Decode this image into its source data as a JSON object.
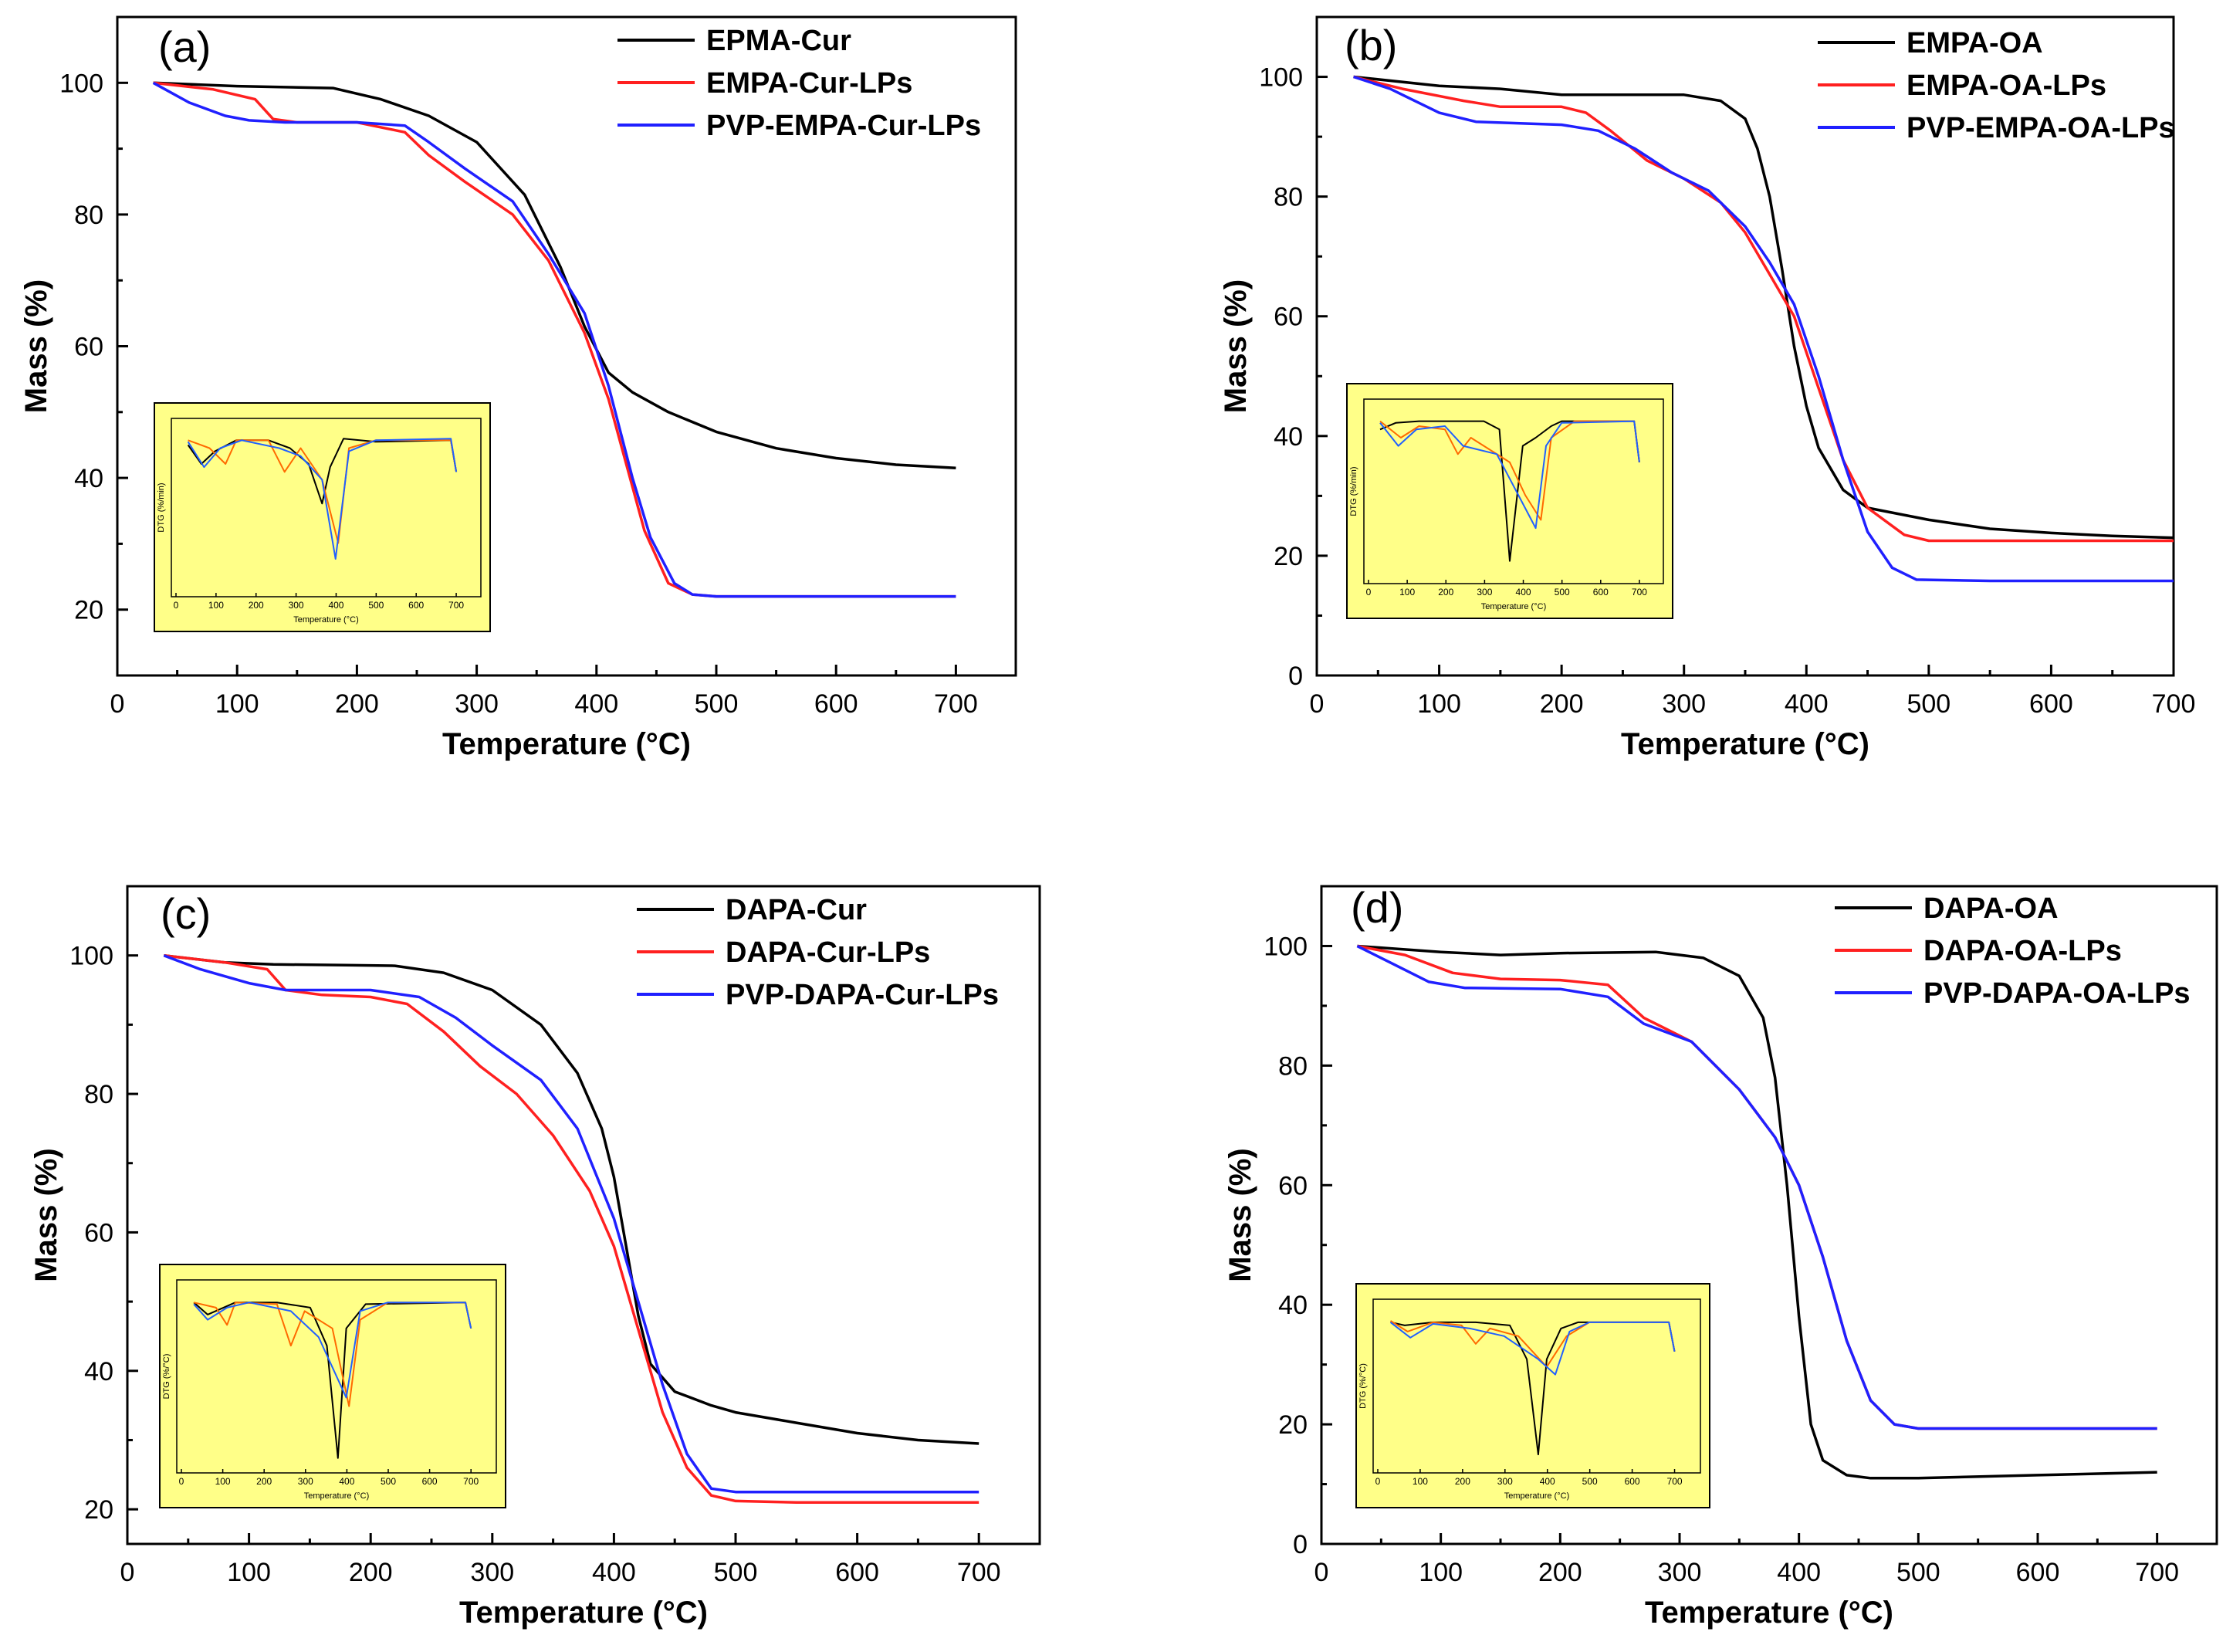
{
  "chart_data": [
    {
      "type": "line",
      "panel": "(a)",
      "xlabel": "Temperature (°C)",
      "ylabel": "Mass (%)",
      "xlim": [
        0,
        750
      ],
      "ylim": [
        10,
        110
      ],
      "xticks": [
        "0",
        "100",
        "200",
        "300",
        "400",
        "500",
        "600",
        "700"
      ],
      "yticks": [
        "20",
        "40",
        "60",
        "80",
        "100"
      ],
      "legend_position": "top-right",
      "series": [
        {
          "name": "EPMA-Cur",
          "color": "#000000",
          "x": [
            30,
            100,
            180,
            220,
            260,
            300,
            340,
            370,
            390,
            410,
            430,
            460,
            500,
            550,
            600,
            650,
            700
          ],
          "y": [
            100,
            99.5,
            99.2,
            97.5,
            95,
            91,
            83,
            72,
            63,
            56,
            53,
            50,
            47,
            44.5,
            43,
            42,
            41.5
          ]
        },
        {
          "name": "EMPA-Cur-LPs",
          "color": "#ff2020",
          "x": [
            30,
            80,
            115,
            130,
            150,
            200,
            240,
            260,
            290,
            330,
            360,
            390,
            410,
            425,
            440,
            460,
            480,
            500,
            550,
            600,
            700
          ],
          "y": [
            100,
            99,
            97.5,
            94.5,
            94,
            94,
            92.5,
            89,
            85,
            80,
            73,
            62,
            52,
            42,
            32,
            24,
            22.3,
            22,
            22,
            22,
            22
          ]
        },
        {
          "name": "PVP-EMPA-Cur-LPs",
          "color": "#2020ff",
          "x": [
            30,
            60,
            90,
            110,
            140,
            200,
            240,
            260,
            290,
            330,
            360,
            390,
            410,
            430,
            445,
            465,
            480,
            500,
            550,
            600,
            700
          ],
          "y": [
            100,
            97,
            95,
            94.3,
            94,
            94,
            93.5,
            91,
            87,
            82,
            74,
            65,
            54,
            40,
            31,
            24,
            22.3,
            22,
            22,
            22,
            22
          ]
        }
      ],
      "inset": {
        "xticks": [
          "0",
          "100",
          "200",
          "300",
          "400",
          "500",
          "600",
          "700"
        ],
        "ylabel": "DTG (%/min)",
        "xlabel": "Temperature (°C)",
        "background": "#ffff88"
      }
    },
    {
      "type": "line",
      "panel": "(b)",
      "xlabel": "Temperature (°C)",
      "ylabel": "Mass (%)",
      "xlim": [
        0,
        700
      ],
      "ylim": [
        0,
        110
      ],
      "xticks": [
        "0",
        "100",
        "200",
        "300",
        "400",
        "500",
        "600",
        "700"
      ],
      "yticks": [
        "0",
        "20",
        "40",
        "60",
        "80",
        "100"
      ],
      "legend_position": "top-right",
      "series": [
        {
          "name": "EMPA-OA",
          "color": "#000000",
          "x": [
            30,
            100,
            150,
            200,
            300,
            330,
            350,
            360,
            370,
            380,
            390,
            400,
            410,
            430,
            450,
            500,
            550,
            600,
            650,
            700
          ],
          "y": [
            100,
            98.5,
            98,
            97,
            97,
            96,
            93,
            88,
            80,
            68,
            55,
            45,
            38,
            31,
            28,
            26,
            24.5,
            23.8,
            23.3,
            23
          ]
        },
        {
          "name": "EMPA-OA-LPs",
          "color": "#ff2020",
          "x": [
            30,
            70,
            120,
            150,
            200,
            220,
            240,
            270,
            300,
            330,
            350,
            370,
            390,
            410,
            430,
            450,
            480,
            500,
            550,
            600,
            700
          ],
          "y": [
            100,
            98,
            96,
            95,
            95,
            94,
            91,
            86,
            83,
            79,
            74,
            67,
            60,
            48,
            36,
            28,
            23.5,
            22.5,
            22.5,
            22.5,
            22.5
          ]
        },
        {
          "name": "PVP-EMPA-OA-LPs",
          "color": "#2020ff",
          "x": [
            30,
            60,
            100,
            130,
            200,
            230,
            260,
            290,
            320,
            350,
            370,
            390,
            410,
            430,
            450,
            470,
            490,
            550,
            600,
            700
          ],
          "y": [
            100,
            98,
            94,
            92.5,
            92,
            91,
            88,
            84,
            81,
            75,
            69,
            62,
            50,
            36,
            24,
            18,
            16,
            15.8,
            15.8,
            15.8
          ]
        }
      ],
      "inset": {
        "xticks": [
          "0",
          "100",
          "200",
          "300",
          "400",
          "500",
          "600",
          "700"
        ],
        "ylabel": "DTG (%/min)",
        "xlabel": "Temperature (°C)",
        "background": "#ffff88"
      }
    },
    {
      "type": "line",
      "panel": "(c)",
      "xlabel": "Temperature (°C)",
      "ylabel": "Mass (%)",
      "xlim": [
        0,
        750
      ],
      "ylim": [
        15,
        110
      ],
      "xticks": [
        "0",
        "100",
        "200",
        "300",
        "400",
        "500",
        "600",
        "700"
      ],
      "yticks": [
        "20",
        "40",
        "60",
        "80",
        "100"
      ],
      "legend_position": "top-right",
      "series": [
        {
          "name": "DAPA-Cur",
          "color": "#000000",
          "x": [
            30,
            80,
            120,
            180,
            220,
            260,
            300,
            340,
            370,
            390,
            400,
            410,
            420,
            430,
            450,
            480,
            500,
            550,
            600,
            650,
            700
          ],
          "y": [
            100,
            99,
            98.7,
            98.6,
            98.5,
            97.5,
            95,
            90,
            83,
            75,
            68,
            58,
            48,
            41,
            37,
            35,
            34,
            32.5,
            31,
            30,
            29.5
          ]
        },
        {
          "name": "DAPA-Cur-LPs",
          "color": "#ff2020",
          "x": [
            30,
            80,
            115,
            130,
            160,
            200,
            230,
            260,
            290,
            320,
            350,
            380,
            400,
            420,
            440,
            460,
            480,
            500,
            550,
            600,
            700
          ],
          "y": [
            100,
            99,
            98,
            95,
            94.3,
            94,
            93,
            89,
            84,
            80,
            74,
            66,
            58,
            46,
            34,
            26,
            22,
            21.2,
            21,
            21,
            21
          ]
        },
        {
          "name": "PVP-DAPA-Cur-LPs",
          "color": "#2020ff",
          "x": [
            30,
            60,
            100,
            130,
            200,
            240,
            270,
            300,
            340,
            370,
            400,
            420,
            440,
            460,
            480,
            500,
            550,
            600,
            700
          ],
          "y": [
            100,
            98,
            96,
            95,
            95,
            94,
            91,
            87,
            82,
            75,
            62,
            50,
            38,
            28,
            23,
            22.5,
            22.5,
            22.5,
            22.5
          ]
        }
      ],
      "inset": {
        "xticks": [
          "0",
          "100",
          "200",
          "300",
          "400",
          "500",
          "600",
          "700"
        ],
        "ylabel": "DTG (%/°C)",
        "xlabel": "Temperature (°C)",
        "background": "#ffff88"
      }
    },
    {
      "type": "line",
      "panel": "(d)",
      "xlabel": "Temperature (°C)",
      "ylabel": "Mass (%)",
      "xlim": [
        0,
        750
      ],
      "ylim": [
        0,
        110
      ],
      "xticks": [
        "0",
        "100",
        "200",
        "300",
        "400",
        "500",
        "600",
        "700"
      ],
      "yticks": [
        "0",
        "20",
        "40",
        "60",
        "80",
        "100"
      ],
      "legend_position": "top-right",
      "series": [
        {
          "name": "DAPA-OA",
          "color": "#000000",
          "x": [
            30,
            100,
            150,
            200,
            280,
            320,
            350,
            370,
            380,
            390,
            400,
            410,
            420,
            440,
            460,
            500,
            600,
            700
          ],
          "y": [
            100,
            99,
            98.5,
            98.8,
            99,
            98,
            95,
            88,
            78,
            60,
            38,
            20,
            14,
            11.5,
            11,
            11,
            11.5,
            12
          ]
        },
        {
          "name": "DAPA-OA-LPs",
          "color": "#ff2020",
          "x": [
            30,
            70,
            110,
            150,
            200,
            240,
            270,
            310,
            350,
            380,
            400,
            420,
            440,
            460,
            480,
            500,
            550,
            600,
            700
          ],
          "y": [
            100,
            98.5,
            95.5,
            94.5,
            94.3,
            93.5,
            88,
            84,
            76,
            68,
            60,
            48,
            34,
            24,
            20,
            19.3,
            19.3,
            19.3,
            19.3
          ]
        },
        {
          "name": "PVP-DAPA-OA-LPs",
          "color": "#2020ff",
          "x": [
            30,
            60,
            90,
            120,
            200,
            240,
            270,
            310,
            350,
            380,
            400,
            420,
            440,
            460,
            480,
            500,
            550,
            600,
            700
          ],
          "y": [
            100,
            97,
            94,
            93,
            92.8,
            91.5,
            87,
            84,
            76,
            68,
            60,
            48,
            34,
            24,
            20,
            19.3,
            19.3,
            19.3,
            19.3
          ]
        }
      ],
      "inset": {
        "xticks": [
          "0",
          "100",
          "200",
          "300",
          "400",
          "500",
          "600",
          "700"
        ],
        "ylabel": "DTG (%/°C)",
        "xlabel": "Temperature (°C)",
        "background": "#ffff88"
      }
    }
  ]
}
